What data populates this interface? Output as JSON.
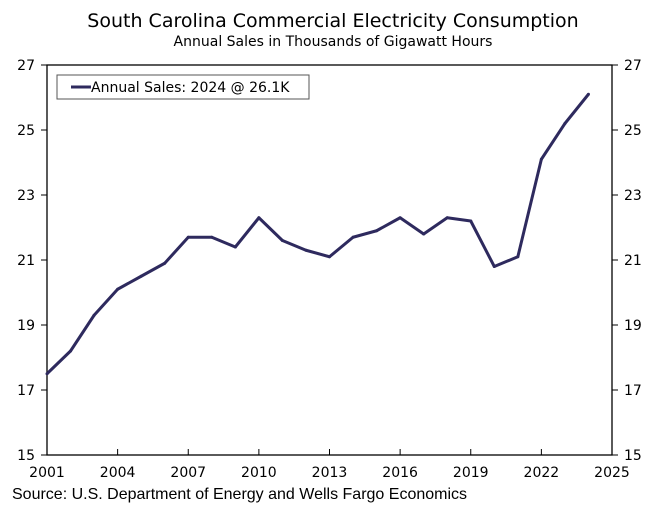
{
  "chart_data": {
    "type": "line",
    "title": "South Carolina Commercial Electricity Consumption",
    "subtitle": "Annual Sales in Thousands of Gigawatt Hours",
    "source": "Source: U.S. Department of Energy and Wells Fargo Economics",
    "legend": "Annual Sales: 2024 @ 26.1K",
    "legend_position": "top-left",
    "xlim": [
      2001,
      2025
    ],
    "ylim": [
      15,
      27
    ],
    "xticks": [
      "2001",
      "2004",
      "2007",
      "2010",
      "2013",
      "2016",
      "2019",
      "2022",
      "2025"
    ],
    "yticks": [
      "15",
      "17",
      "19",
      "21",
      "23",
      "25",
      "27"
    ],
    "series": [
      {
        "name": "Annual Sales",
        "color": "#2e2a5e",
        "x": [
          2001,
          2002,
          2003,
          2004,
          2005,
          2006,
          2007,
          2008,
          2009,
          2010,
          2011,
          2012,
          2013,
          2014,
          2015,
          2016,
          2017,
          2018,
          2019,
          2020,
          2021,
          2022,
          2023,
          2024
        ],
        "values": [
          17.5,
          18.2,
          19.3,
          20.1,
          20.5,
          20.9,
          21.7,
          21.7,
          21.4,
          22.3,
          21.6,
          21.3,
          21.1,
          21.7,
          21.9,
          22.3,
          21.8,
          22.3,
          22.2,
          20.8,
          21.1,
          24.1,
          25.2,
          26.1
        ]
      }
    ]
  }
}
